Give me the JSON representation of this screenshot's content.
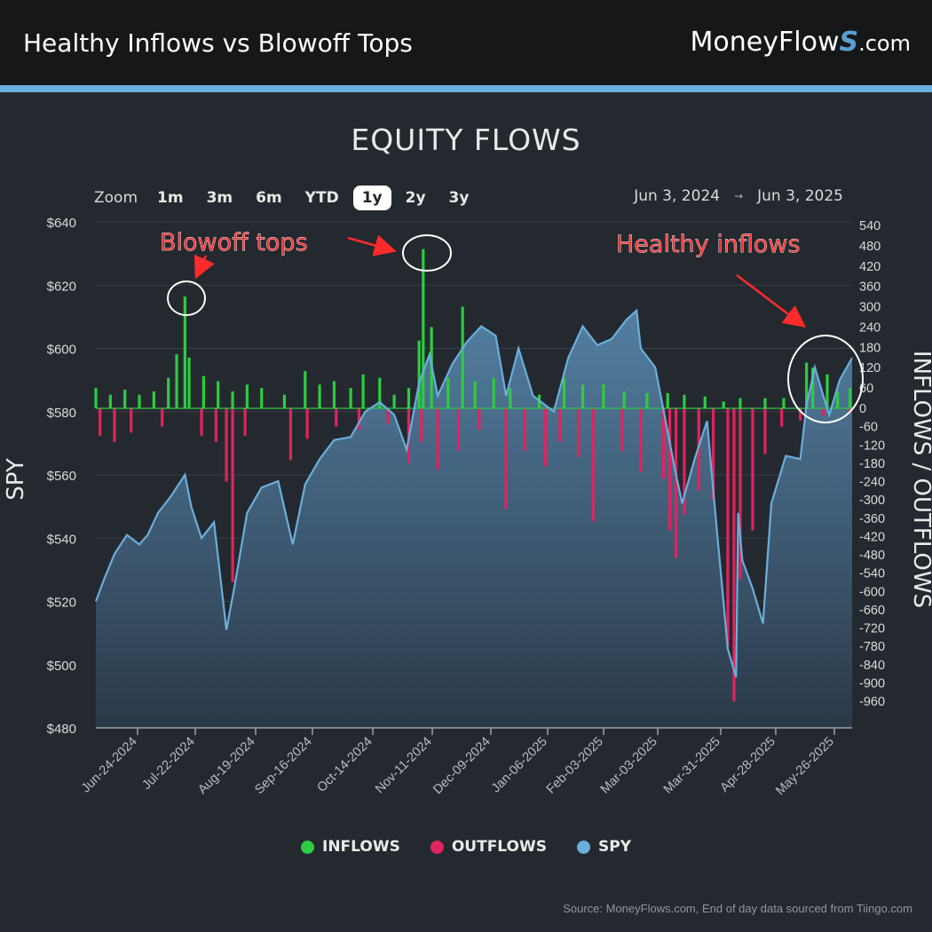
{
  "header": {
    "title": "Healthy Inflows vs Blowoff Tops",
    "brand_main": "MoneyFlow",
    "brand_s": "S",
    "brand_domain": ".com"
  },
  "chart_title": "EQUITY FLOWS",
  "zoom": {
    "label": "Zoom",
    "buttons": [
      "1m",
      "3m",
      "6m",
      "YTD",
      "1y",
      "2y",
      "3y"
    ],
    "active": "1y"
  },
  "range": {
    "from": "Jun 3, 2024",
    "arrow": "→",
    "to": "Jun 3, 2025"
  },
  "legend": [
    {
      "label": "INFLOWS",
      "color": "#2ecc40"
    },
    {
      "label": "OUTFLOWS",
      "color": "#e0245e"
    },
    {
      "label": "SPY",
      "color": "#6aaedc"
    }
  ],
  "source": "Source: MoneyFlows.com, End of day data sourced from Tiingo.com",
  "annotations": [
    {
      "text": "Blowoff tops",
      "color": "#ff2a2a"
    },
    {
      "text": "Healthy inflows",
      "color": "#ff2a2a"
    }
  ],
  "chart_data": {
    "type": "bar",
    "title": "EQUITY FLOWS",
    "x_ticks": [
      "Jun-24-2024",
      "Jul-22-2024",
      "Aug-19-2024",
      "Sep-16-2024",
      "Oct-14-2024",
      "Nov-11-2024",
      "Dec-09-2024",
      "Jan-06-2025",
      "Feb-03-2025",
      "Mar-03-2025",
      "Mar-31-2025",
      "Apr-28-2025",
      "May-26-2025"
    ],
    "y_left": {
      "label": "SPY",
      "min": 480,
      "max": 640,
      "ticks": [
        "$480",
        "$500",
        "$520",
        "$540",
        "$560",
        "$580",
        "$600",
        "$620",
        "$640"
      ]
    },
    "y_right": {
      "label": "INFLOWS / OUTFLOWS",
      "min": -960,
      "max": 540,
      "ticks": [
        "540",
        "480",
        "420",
        "360",
        "300",
        "240",
        "180",
        "120",
        "60",
        "0",
        "-60",
        "-120",
        "-180",
        "-240",
        "-300",
        "-360",
        "-420",
        "-480",
        "-540",
        "-600",
        "-660",
        "-720",
        "-780",
        "-840",
        "-900",
        "-960"
      ]
    },
    "spy": [
      [
        "2024-06-03",
        520
      ],
      [
        "2024-06-07",
        527
      ],
      [
        "2024-06-12",
        535
      ],
      [
        "2024-06-18",
        541
      ],
      [
        "2024-06-24",
        538
      ],
      [
        "2024-06-28",
        541
      ],
      [
        "2024-07-03",
        548
      ],
      [
        "2024-07-09",
        553
      ],
      [
        "2024-07-16",
        560
      ],
      [
        "2024-07-19",
        550
      ],
      [
        "2024-07-24",
        540
      ],
      [
        "2024-07-30",
        545
      ],
      [
        "2024-08-05",
        511
      ],
      [
        "2024-08-09",
        525
      ],
      [
        "2024-08-15",
        548
      ],
      [
        "2024-08-22",
        556
      ],
      [
        "2024-08-30",
        558
      ],
      [
        "2024-09-06",
        538
      ],
      [
        "2024-09-12",
        557
      ],
      [
        "2024-09-19",
        565
      ],
      [
        "2024-09-26",
        571
      ],
      [
        "2024-10-04",
        572
      ],
      [
        "2024-10-11",
        580
      ],
      [
        "2024-10-18",
        583
      ],
      [
        "2024-10-25",
        579
      ],
      [
        "2024-10-31",
        568
      ],
      [
        "2024-11-06",
        589
      ],
      [
        "2024-11-11",
        598
      ],
      [
        "2024-11-15",
        585
      ],
      [
        "2024-11-22",
        595
      ],
      [
        "2024-11-29",
        602
      ],
      [
        "2024-12-06",
        607
      ],
      [
        "2024-12-13",
        604
      ],
      [
        "2024-12-18",
        585
      ],
      [
        "2024-12-24",
        600
      ],
      [
        "2024-12-31",
        585
      ],
      [
        "2025-01-10",
        580
      ],
      [
        "2025-01-17",
        597
      ],
      [
        "2025-01-24",
        607
      ],
      [
        "2025-01-31",
        601
      ],
      [
        "2025-02-07",
        603
      ],
      [
        "2025-02-14",
        609
      ],
      [
        "2025-02-19",
        612
      ],
      [
        "2025-02-21",
        600
      ],
      [
        "2025-02-28",
        594
      ],
      [
        "2025-03-10",
        560
      ],
      [
        "2025-03-13",
        551
      ],
      [
        "2025-03-19",
        565
      ],
      [
        "2025-03-25",
        577
      ],
      [
        "2025-03-28",
        555
      ],
      [
        "2025-04-04",
        505
      ],
      [
        "2025-04-08",
        496
      ],
      [
        "2025-04-09",
        548
      ],
      [
        "2025-04-11",
        533
      ],
      [
        "2025-04-16",
        524
      ],
      [
        "2025-04-21",
        513
      ],
      [
        "2025-04-25",
        551
      ],
      [
        "2025-05-02",
        566
      ],
      [
        "2025-05-09",
        565
      ],
      [
        "2025-05-12",
        582
      ],
      [
        "2025-05-16",
        594
      ],
      [
        "2025-05-21",
        583
      ],
      [
        "2025-05-23",
        579
      ],
      [
        "2025-05-28",
        590
      ],
      [
        "2025-06-03",
        597
      ]
    ],
    "flows": {
      "positive": [
        [
          "2024-06-03",
          60
        ],
        [
          "2024-06-10",
          40
        ],
        [
          "2024-06-17",
          55
        ],
        [
          "2024-06-24",
          40
        ],
        [
          "2024-07-01",
          50
        ],
        [
          "2024-07-08",
          90
        ],
        [
          "2024-07-12",
          160
        ],
        [
          "2024-07-16",
          330
        ],
        [
          "2024-07-18",
          150
        ],
        [
          "2024-07-25",
          95
        ],
        [
          "2024-08-01",
          80
        ],
        [
          "2024-08-08",
          50
        ],
        [
          "2024-08-15",
          70
        ],
        [
          "2024-08-22",
          60
        ],
        [
          "2024-09-02",
          40
        ],
        [
          "2024-09-12",
          110
        ],
        [
          "2024-09-19",
          70
        ],
        [
          "2024-09-26",
          80
        ],
        [
          "2024-10-04",
          60
        ],
        [
          "2024-10-10",
          100
        ],
        [
          "2024-10-18",
          90
        ],
        [
          "2024-10-25",
          40
        ],
        [
          "2024-11-01",
          60
        ],
        [
          "2024-11-06",
          200
        ],
        [
          "2024-11-08",
          470
        ],
        [
          "2024-11-12",
          240
        ],
        [
          "2024-11-20",
          90
        ],
        [
          "2024-11-27",
          300
        ],
        [
          "2024-12-03",
          80
        ],
        [
          "2024-12-12",
          90
        ],
        [
          "2024-12-20",
          60
        ],
        [
          "2025-01-03",
          40
        ],
        [
          "2025-01-15",
          90
        ],
        [
          "2025-01-24",
          70
        ],
        [
          "2025-02-03",
          70
        ],
        [
          "2025-02-13",
          50
        ],
        [
          "2025-02-24",
          45
        ],
        [
          "2025-03-06",
          45
        ],
        [
          "2025-03-14",
          40
        ],
        [
          "2025-03-24",
          35
        ],
        [
          "2025-04-02",
          20
        ],
        [
          "2025-04-10",
          30
        ],
        [
          "2025-04-22",
          30
        ],
        [
          "2025-05-01",
          30
        ],
        [
          "2025-05-12",
          135
        ],
        [
          "2025-05-15",
          120
        ],
        [
          "2025-05-22",
          100
        ],
        [
          "2025-05-27",
          50
        ],
        [
          "2025-06-02",
          60
        ]
      ],
      "negative": [
        [
          "2024-06-05",
          -90
        ],
        [
          "2024-06-12",
          -110
        ],
        [
          "2024-06-20",
          -80
        ],
        [
          "2024-07-05",
          -60
        ],
        [
          "2024-07-24",
          -90
        ],
        [
          "2024-07-31",
          -110
        ],
        [
          "2024-08-05",
          -240
        ],
        [
          "2024-08-08",
          -570
        ],
        [
          "2024-08-14",
          -90
        ],
        [
          "2024-09-05",
          -170
        ],
        [
          "2024-09-13",
          -100
        ],
        [
          "2024-09-27",
          -60
        ],
        [
          "2024-10-08",
          -70
        ],
        [
          "2024-10-22",
          -50
        ],
        [
          "2024-11-01",
          -180
        ],
        [
          "2024-11-07",
          -110
        ],
        [
          "2024-11-15",
          -200
        ],
        [
          "2024-11-25",
          -140
        ],
        [
          "2024-12-05",
          -70
        ],
        [
          "2024-12-18",
          -330
        ],
        [
          "2024-12-27",
          -140
        ],
        [
          "2025-01-06",
          -190
        ],
        [
          "2025-01-13",
          -110
        ],
        [
          "2025-01-22",
          -160
        ],
        [
          "2025-01-29",
          -370
        ],
        [
          "2025-02-12",
          -140
        ],
        [
          "2025-02-21",
          -210
        ],
        [
          "2025-03-04",
          -230
        ],
        [
          "2025-03-07",
          -400
        ],
        [
          "2025-03-10",
          -490
        ],
        [
          "2025-03-14",
          -350
        ],
        [
          "2025-03-21",
          -270
        ],
        [
          "2025-03-28",
          -300
        ],
        [
          "2025-04-04",
          -780
        ],
        [
          "2025-04-07",
          -960
        ],
        [
          "2025-04-10",
          -560
        ],
        [
          "2025-04-16",
          -400
        ],
        [
          "2025-04-22",
          -150
        ],
        [
          "2025-04-30",
          -60
        ],
        [
          "2025-05-09",
          -40
        ],
        [
          "2025-05-20",
          -25
        ],
        [
          "2025-06-02",
          -15
        ]
      ]
    },
    "legend_position": "bottom",
    "grid": true
  }
}
